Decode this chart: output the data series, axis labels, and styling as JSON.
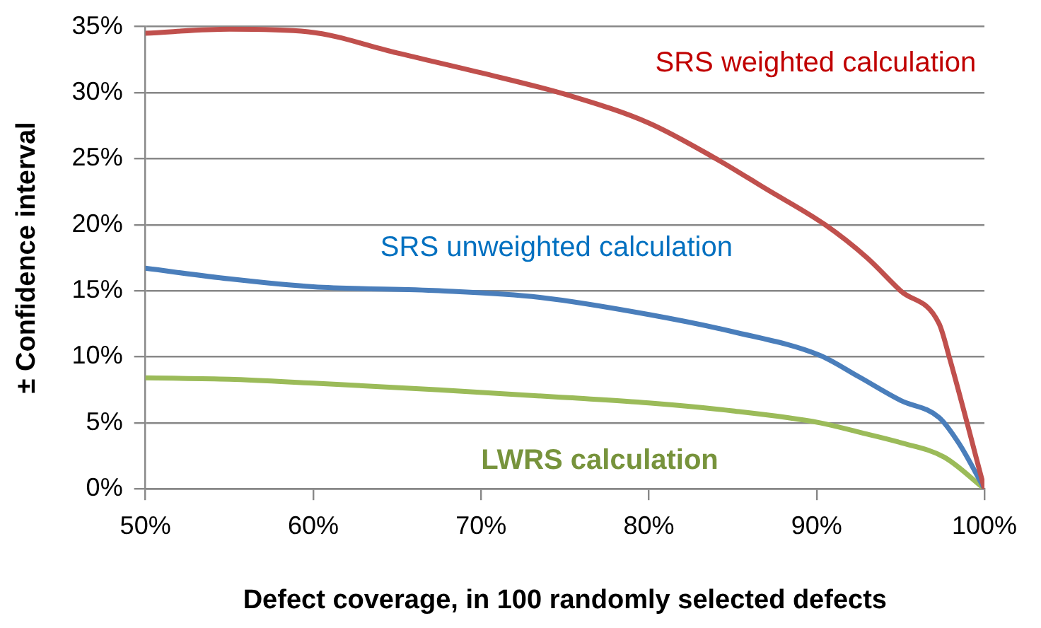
{
  "chart_data": {
    "type": "line",
    "xlabel": "Defect coverage, in 100 randomly selected defects",
    "ylabel": "± Confidence interval",
    "series": [
      {
        "name": "SRS weighted calculation",
        "color": "#c0504d",
        "x": [
          50,
          55,
          59.7,
          65,
          70,
          75.2,
          80,
          84,
          87,
          90.5,
          93,
          95,
          97.3,
          97.9,
          100
        ],
        "values": [
          34.5,
          34.8,
          34.6,
          33.0,
          31.5,
          29.8,
          27.7,
          25,
          22.7,
          20,
          17.5,
          15,
          12.5,
          10,
          0
        ]
      },
      {
        "name": "SRS unweighted calculation",
        "color": "#4a7ebb",
        "x": [
          50,
          55,
          60,
          67.5,
          73.5,
          80,
          85,
          90.2,
          92.5,
          95,
          97.3,
          98.5,
          100
        ],
        "values": [
          16.7,
          15.9,
          15.3,
          15.0,
          14.5,
          13.2,
          11.9,
          10.1,
          8.5,
          6.7,
          5.4,
          3.4,
          0
        ]
      },
      {
        "name": "LWRS calculation",
        "color": "#9bbb59",
        "x": [
          50,
          55,
          60,
          67.5,
          75.2,
          80,
          85,
          90.2,
          92.5,
          95,
          97.6,
          100
        ],
        "values": [
          8.4,
          8.3,
          8.0,
          7.5,
          6.9,
          6.5,
          5.9,
          5.0,
          4.3,
          3.5,
          2.4,
          0
        ]
      }
    ],
    "xlim": [
      50,
      100
    ],
    "xticks": [
      {
        "value": 50,
        "label": "50%"
      },
      {
        "value": 60,
        "label": "60%"
      },
      {
        "value": 70,
        "label": "70%"
      },
      {
        "value": 80,
        "label": "80%"
      },
      {
        "value": 90,
        "label": "90%"
      },
      {
        "value": 100,
        "label": "100%"
      }
    ],
    "ylim": [
      0,
      35
    ],
    "yticks": [
      {
        "value": 0,
        "label": "0%"
      },
      {
        "value": 5,
        "label": "5%"
      },
      {
        "value": 10,
        "label": "10%"
      },
      {
        "value": 15,
        "label": "15%"
      },
      {
        "value": 20,
        "label": "20%"
      },
      {
        "value": 25,
        "label": "25%"
      },
      {
        "value": 30,
        "label": "30%"
      },
      {
        "value": 35,
        "label": "35%"
      }
    ],
    "grid": "y",
    "legend": false,
    "marker": "none",
    "line_style": "solid"
  }
}
